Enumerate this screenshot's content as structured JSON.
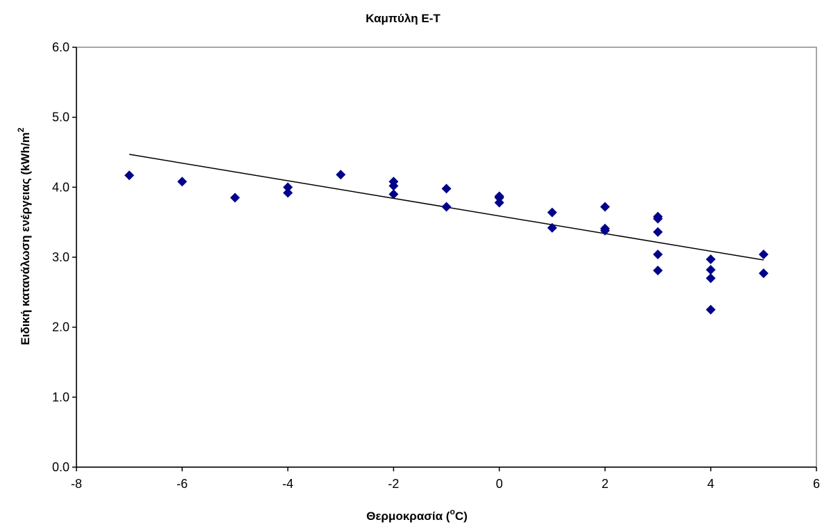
{
  "chart_data": {
    "type": "scatter",
    "title": "Καμπύλη Ε-Τ",
    "xlabel": "Θερμοκρασία (",
    "xlabel_sup": "o",
    "xlabel_tail": "C)",
    "ylabel": "Ειδική κατανάλωση ενέργειας (kWh/m",
    "ylabel_sup": "2",
    "xlim": [
      -8,
      6
    ],
    "ylim": [
      0,
      6
    ],
    "xticks": [
      "-8",
      "-6",
      "-4",
      "-2",
      "0",
      "2",
      "4",
      "6"
    ],
    "yticks": [
      "0.0",
      "1.0",
      "2.0",
      "3.0",
      "4.0",
      "5.0",
      "6.0"
    ],
    "grid": false,
    "legend": "none",
    "marker_color": "#00008B",
    "trendline_color": "#000000",
    "points": [
      {
        "x": -7,
        "y": 4.17
      },
      {
        "x": -6,
        "y": 4.08
      },
      {
        "x": -5,
        "y": 3.85
      },
      {
        "x": -4,
        "y": 4.0
      },
      {
        "x": -4,
        "y": 3.92
      },
      {
        "x": -3,
        "y": 4.18
      },
      {
        "x": -2,
        "y": 4.08
      },
      {
        "x": -2,
        "y": 4.02
      },
      {
        "x": -2,
        "y": 3.9
      },
      {
        "x": -1,
        "y": 3.98
      },
      {
        "x": -1,
        "y": 3.72
      },
      {
        "x": 0,
        "y": 3.87
      },
      {
        "x": 0,
        "y": 3.85
      },
      {
        "x": 0,
        "y": 3.78
      },
      {
        "x": 1,
        "y": 3.64
      },
      {
        "x": 1,
        "y": 3.42
      },
      {
        "x": 2,
        "y": 3.72
      },
      {
        "x": 2,
        "y": 3.41
      },
      {
        "x": 2,
        "y": 3.38
      },
      {
        "x": 3,
        "y": 3.58
      },
      {
        "x": 3,
        "y": 3.55
      },
      {
        "x": 3,
        "y": 3.36
      },
      {
        "x": 3,
        "y": 3.04
      },
      {
        "x": 3,
        "y": 2.81
      },
      {
        "x": 4,
        "y": 2.97
      },
      {
        "x": 4,
        "y": 2.82
      },
      {
        "x": 4,
        "y": 2.7
      },
      {
        "x": 4,
        "y": 2.25
      },
      {
        "x": 5,
        "y": 3.04
      },
      {
        "x": 5,
        "y": 2.77
      }
    ],
    "trendline": {
      "x": [
        -7,
        5
      ],
      "y": [
        4.47,
        2.96
      ]
    }
  }
}
